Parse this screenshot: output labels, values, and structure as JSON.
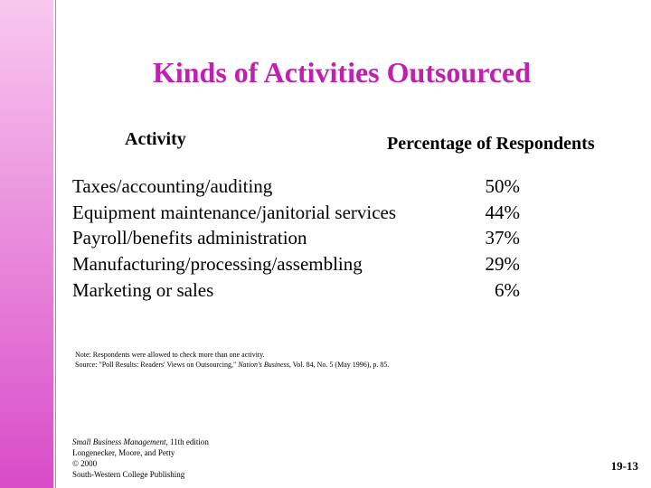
{
  "header": {
    "title": "Kinds of Activities Outsourced"
  },
  "table": {
    "headers": [
      "Activity",
      "Percentage of Respondents"
    ],
    "rows": [
      [
        "Taxes/accounting/auditing",
        "50%"
      ],
      [
        "Equipment maintenance/janitorial services",
        "44%"
      ],
      [
        "Payroll/benefits administration",
        "37%"
      ],
      [
        "Manufacturing/processing/assembling",
        "29%"
      ],
      [
        "Marketing or sales",
        "6%"
      ]
    ]
  },
  "note": "Note: Respondents were allowed to check more than one activity.",
  "source": {
    "prefix": "Source: \"Poll Results: Readers' Views on Outsourcing,\" ",
    "publication": "Nation's Business",
    "suffix": ", Vol. 84, No. 5 (May 1996), p. 85."
  },
  "footer": {
    "book": "Small Business Management",
    "edition": ", 11th edition",
    "authors": "Longenecker, Moore, and Petty",
    "copyright": "© 2000",
    "publisher": "South-Western College Publishing"
  },
  "page_number": "19-13"
}
